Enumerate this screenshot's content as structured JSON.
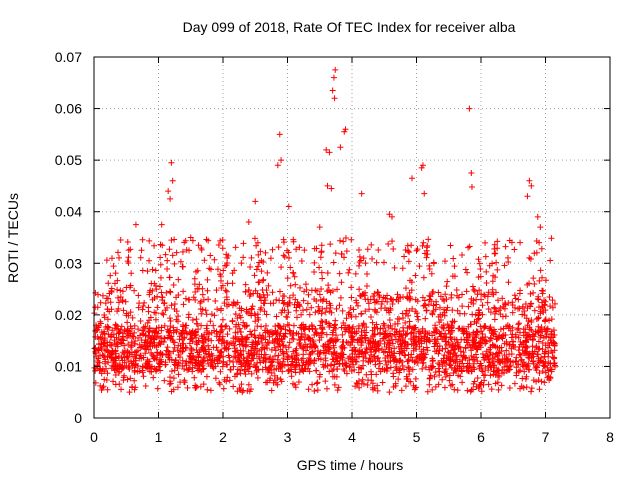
{
  "chart_data": {
    "type": "scatter",
    "title": "Day 099 of 2018, Rate Of TEC Index for receiver alba",
    "xlabel": "GPS time / hours",
    "ylabel": "ROTI / TECUs",
    "xlim": [
      0,
      8
    ],
    "ylim": [
      0,
      0.07
    ],
    "xticks": [
      "0",
      "1",
      "2",
      "3",
      "4",
      "5",
      "6",
      "7",
      "8"
    ],
    "yticks": [
      "0",
      "0.01",
      "0.02",
      "0.03",
      "0.04",
      "0.05",
      "0.06",
      "0.07"
    ],
    "grid": true,
    "marker": "+",
    "color": "#ff0000",
    "data_range_hours": [
      0,
      7.15
    ],
    "baseline_band": [
      0.005,
      0.025
    ],
    "series": [
      {
        "name": "ROTI",
        "points": [
          [
            1.2,
            0.0495
          ],
          [
            1.15,
            0.044
          ],
          [
            1.22,
            0.046
          ],
          [
            1.18,
            0.0425
          ],
          [
            2.88,
            0.055
          ],
          [
            2.9,
            0.05
          ],
          [
            2.85,
            0.049
          ],
          [
            3.74,
            0.0675
          ],
          [
            3.72,
            0.066
          ],
          [
            3.7,
            0.0635
          ],
          [
            3.73,
            0.062
          ],
          [
            3.9,
            0.056
          ],
          [
            3.88,
            0.0555
          ],
          [
            3.82,
            0.0525
          ],
          [
            3.6,
            0.052
          ],
          [
            3.65,
            0.0515
          ],
          [
            3.62,
            0.045
          ],
          [
            3.68,
            0.0445
          ],
          [
            5.82,
            0.06
          ],
          [
            5.85,
            0.0475
          ],
          [
            5.86,
            0.0448
          ],
          [
            5.08,
            0.0485
          ],
          [
            5.1,
            0.049
          ],
          [
            5.12,
            0.0435
          ],
          [
            4.93,
            0.0465
          ],
          [
            6.75,
            0.046
          ],
          [
            6.78,
            0.045
          ],
          [
            6.72,
            0.043
          ],
          [
            6.88,
            0.039
          ],
          [
            6.92,
            0.037
          ],
          [
            4.58,
            0.0395
          ],
          [
            4.62,
            0.039
          ],
          [
            3.02,
            0.041
          ],
          [
            3.5,
            0.037
          ],
          [
            4.15,
            0.0435
          ],
          [
            0.65,
            0.0375
          ],
          [
            1.05,
            0.0375
          ],
          [
            1.5,
            0.035
          ],
          [
            2.5,
            0.042
          ],
          [
            2.4,
            0.038
          ]
        ]
      }
    ]
  }
}
